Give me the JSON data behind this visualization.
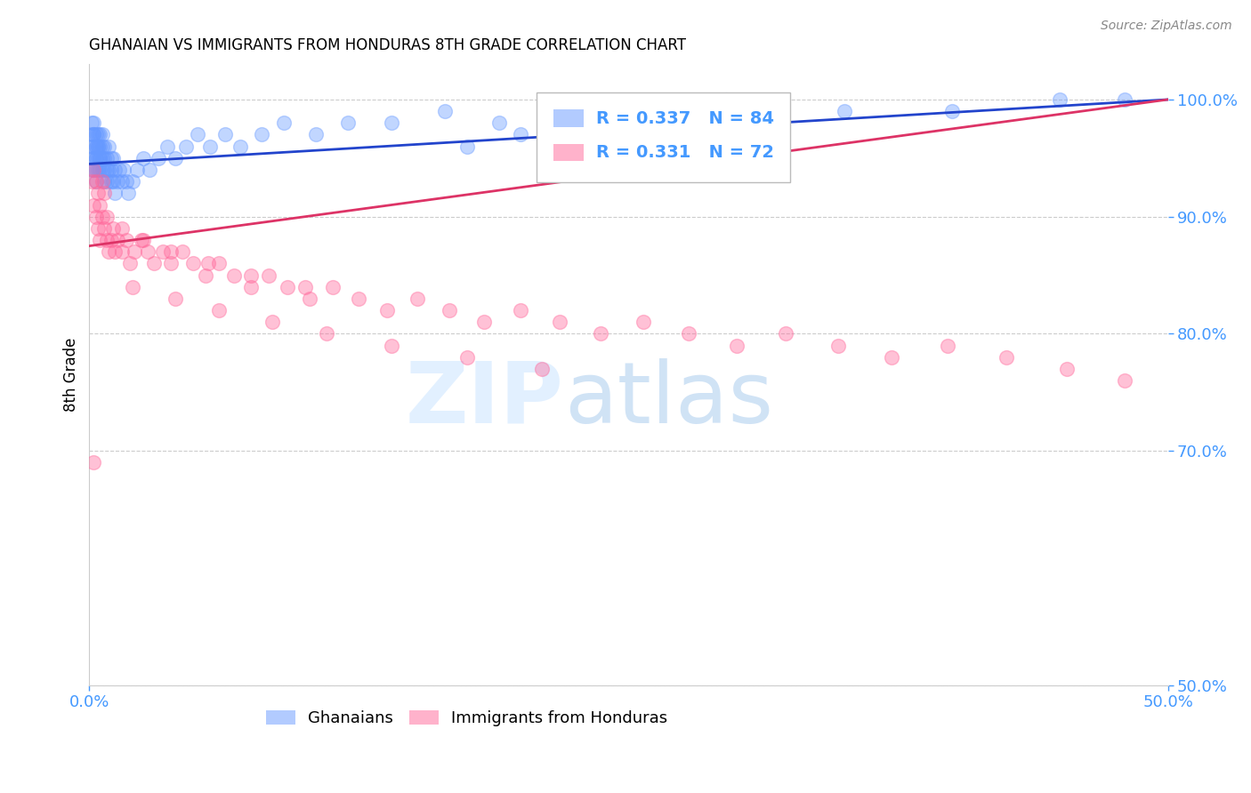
{
  "title": "GHANAIAN VS IMMIGRANTS FROM HONDURAS 8TH GRADE CORRELATION CHART",
  "source": "Source: ZipAtlas.com",
  "ylabel_label": "8th Grade",
  "ylabel_ticks": [
    "100.0%",
    "90.0%",
    "80.0%",
    "70.0%",
    "50.0%"
  ],
  "ylabel_values": [
    1.0,
    0.9,
    0.8,
    0.7,
    0.5
  ],
  "xmin": 0.0,
  "xmax": 0.5,
  "ymin": 0.5,
  "ymax": 1.03,
  "blue_color": "#6699ff",
  "pink_color": "#ff6699",
  "blue_line_color": "#2244cc",
  "pink_line_color": "#dd3366",
  "legend_blue_R": "0.337",
  "legend_blue_N": "84",
  "legend_pink_R": "0.331",
  "legend_pink_N": "72",
  "blue_scatter_x": [
    0.001,
    0.001,
    0.001,
    0.001,
    0.001,
    0.002,
    0.002,
    0.002,
    0.002,
    0.002,
    0.002,
    0.003,
    0.003,
    0.003,
    0.003,
    0.003,
    0.003,
    0.003,
    0.004,
    0.004,
    0.004,
    0.004,
    0.004,
    0.005,
    0.005,
    0.005,
    0.005,
    0.005,
    0.006,
    0.006,
    0.006,
    0.006,
    0.007,
    0.007,
    0.007,
    0.007,
    0.008,
    0.008,
    0.008,
    0.009,
    0.009,
    0.01,
    0.01,
    0.01,
    0.011,
    0.011,
    0.012,
    0.012,
    0.013,
    0.014,
    0.015,
    0.016,
    0.017,
    0.018,
    0.02,
    0.022,
    0.025,
    0.028,
    0.032,
    0.036,
    0.04,
    0.045,
    0.05,
    0.056,
    0.063,
    0.07,
    0.08,
    0.09,
    0.105,
    0.12,
    0.14,
    0.165,
    0.19,
    0.22,
    0.255,
    0.295,
    0.175,
    0.2,
    0.26,
    0.31,
    0.35,
    0.4,
    0.45,
    0.48
  ],
  "blue_scatter_y": [
    0.97,
    0.96,
    0.95,
    0.98,
    0.94,
    0.97,
    0.96,
    0.95,
    0.94,
    0.98,
    0.97,
    0.96,
    0.95,
    0.94,
    0.93,
    0.97,
    0.96,
    0.95,
    0.96,
    0.95,
    0.94,
    0.97,
    0.96,
    0.95,
    0.94,
    0.97,
    0.96,
    0.95,
    0.96,
    0.95,
    0.94,
    0.97,
    0.95,
    0.94,
    0.93,
    0.96,
    0.95,
    0.94,
    0.93,
    0.96,
    0.94,
    0.95,
    0.94,
    0.93,
    0.95,
    0.93,
    0.94,
    0.92,
    0.93,
    0.94,
    0.93,
    0.94,
    0.93,
    0.92,
    0.93,
    0.94,
    0.95,
    0.94,
    0.95,
    0.96,
    0.95,
    0.96,
    0.97,
    0.96,
    0.97,
    0.96,
    0.97,
    0.98,
    0.97,
    0.98,
    0.98,
    0.99,
    0.98,
    0.99,
    0.99,
    1.0,
    0.96,
    0.97,
    0.98,
    0.99,
    0.99,
    0.99,
    1.0,
    1.0
  ],
  "pink_scatter_x": [
    0.001,
    0.002,
    0.002,
    0.003,
    0.003,
    0.004,
    0.004,
    0.005,
    0.005,
    0.006,
    0.006,
    0.007,
    0.007,
    0.008,
    0.009,
    0.01,
    0.011,
    0.012,
    0.013,
    0.015,
    0.017,
    0.019,
    0.021,
    0.024,
    0.027,
    0.03,
    0.034,
    0.038,
    0.043,
    0.048,
    0.054,
    0.06,
    0.067,
    0.075,
    0.083,
    0.092,
    0.102,
    0.113,
    0.125,
    0.138,
    0.152,
    0.167,
    0.183,
    0.2,
    0.218,
    0.237,
    0.257,
    0.278,
    0.3,
    0.323,
    0.347,
    0.372,
    0.398,
    0.425,
    0.453,
    0.48,
    0.02,
    0.04,
    0.06,
    0.085,
    0.11,
    0.14,
    0.175,
    0.21,
    0.008,
    0.015,
    0.025,
    0.038,
    0.055,
    0.075,
    0.1,
    0.002
  ],
  "pink_scatter_y": [
    0.93,
    0.91,
    0.94,
    0.9,
    0.93,
    0.89,
    0.92,
    0.88,
    0.91,
    0.9,
    0.93,
    0.89,
    0.92,
    0.88,
    0.87,
    0.88,
    0.89,
    0.87,
    0.88,
    0.87,
    0.88,
    0.86,
    0.87,
    0.88,
    0.87,
    0.86,
    0.87,
    0.86,
    0.87,
    0.86,
    0.85,
    0.86,
    0.85,
    0.84,
    0.85,
    0.84,
    0.83,
    0.84,
    0.83,
    0.82,
    0.83,
    0.82,
    0.81,
    0.82,
    0.81,
    0.8,
    0.81,
    0.8,
    0.79,
    0.8,
    0.79,
    0.78,
    0.79,
    0.78,
    0.77,
    0.76,
    0.84,
    0.83,
    0.82,
    0.81,
    0.8,
    0.79,
    0.78,
    0.77,
    0.9,
    0.89,
    0.88,
    0.87,
    0.86,
    0.85,
    0.84,
    0.69
  ],
  "grid_color": "#cccccc",
  "axis_color": "#4499ff",
  "background_color": "#ffffff"
}
